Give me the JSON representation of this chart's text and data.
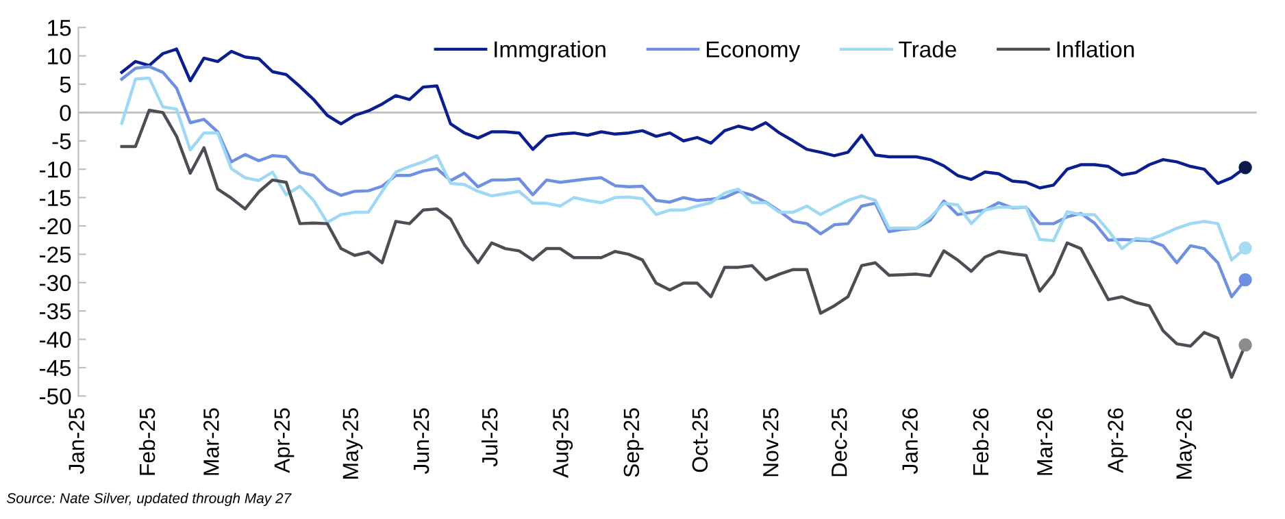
{
  "chart_data": {
    "type": "line",
    "x": [
      "2025-01-20",
      "2025-01-26",
      "2025-02-01",
      "2025-02-07",
      "2025-02-13",
      "2025-02-19",
      "2025-02-25",
      "2025-03-03",
      "2025-03-09",
      "2025-03-15",
      "2025-03-21",
      "2025-03-27",
      "2025-04-02",
      "2025-04-08",
      "2025-04-14",
      "2025-04-20",
      "2025-04-26",
      "2025-05-02",
      "2025-05-08",
      "2025-05-14",
      "2025-05-20",
      "2025-05-26",
      "2025-06-01",
      "2025-06-07",
      "2025-06-13",
      "2025-06-19",
      "2025-06-25",
      "2025-07-01",
      "2025-07-07",
      "2025-07-13",
      "2025-07-19",
      "2025-07-25",
      "2025-07-31",
      "2025-08-06",
      "2025-08-12",
      "2025-08-18",
      "2025-08-24",
      "2025-08-30",
      "2025-09-05",
      "2025-09-11",
      "2025-09-17",
      "2025-09-23",
      "2025-09-29",
      "2025-10-05",
      "2025-10-11",
      "2025-10-17",
      "2025-10-23",
      "2025-10-29",
      "2025-11-04",
      "2025-11-10",
      "2025-11-16",
      "2025-11-22",
      "2025-11-28",
      "2025-12-04",
      "2025-12-10",
      "2025-12-16",
      "2025-12-22",
      "2025-12-28",
      "2026-01-03",
      "2026-01-09",
      "2026-01-15",
      "2026-01-21",
      "2026-01-27",
      "2026-02-02",
      "2026-02-08",
      "2026-02-14",
      "2026-02-20",
      "2026-02-26",
      "2026-03-04",
      "2026-03-10",
      "2026-03-16",
      "2026-03-22",
      "2026-03-28",
      "2026-04-03",
      "2026-04-09",
      "2026-04-15",
      "2026-04-21",
      "2026-04-27",
      "2026-05-03",
      "2026-05-09",
      "2026-05-15",
      "2026-05-21",
      "2026-05-27"
    ],
    "series": [
      {
        "name": "Immgration",
        "color": "#0a1f8f",
        "values": [
          7.1,
          9,
          8.3,
          10.4,
          11.2,
          5.6,
          9.6,
          9,
          10.8,
          9.8,
          9.5,
          7.2,
          6.7,
          4.6,
          2.3,
          -0.5,
          -2,
          -0.5,
          0.3,
          1.5,
          3,
          2.3,
          4.5,
          4.7,
          -2,
          -3.6,
          -4.5,
          -3.4,
          -3.4,
          -3.6,
          -6.5,
          -4.2,
          -3.8,
          -3.6,
          -4,
          -3.4,
          -3.8,
          -3.6,
          -3.2,
          -4.2,
          -3.6,
          -5,
          -4.4,
          -5.4,
          -3.2,
          -2.4,
          -3,
          -1.8,
          -3.6,
          -5,
          -6.5,
          -7,
          -7.6,
          -7,
          -4,
          -7.5,
          -7.8,
          -7.8,
          -7.8,
          -8.3,
          -9.4,
          -11.1,
          -11.8,
          -10.5,
          -10.8,
          -12.1,
          -12.3,
          -13.3,
          -12.8,
          -10,
          -9.2,
          -9.2,
          -9.5,
          -11,
          -10.6,
          -9.2,
          -8.3,
          -8.7,
          -9.5,
          -10,
          -12.5,
          -11.5,
          -9.7
        ]
      },
      {
        "name": "Economy",
        "color": "#6f8fe0",
        "values": [
          5.9,
          7.8,
          8.1,
          7.1,
          4.3,
          -1.8,
          -1.2,
          -3.4,
          -8.7,
          -7.4,
          -8.5,
          -7.6,
          -7.8,
          -10.5,
          -11.1,
          -13.5,
          -14.6,
          -13.9,
          -13.8,
          -13,
          -11.1,
          -11.1,
          -10.3,
          -9.9,
          -12,
          -10.7,
          -13.1,
          -11.9,
          -11.9,
          -11.7,
          -14.5,
          -11.9,
          -12.3,
          -12,
          -11.7,
          -11.5,
          -12.9,
          -13.1,
          -13,
          -15.5,
          -15.8,
          -15,
          -15.5,
          -15.3,
          -15,
          -13.9,
          -14.6,
          -15.8,
          -17.4,
          -19.2,
          -19.6,
          -21.4,
          -19.8,
          -19.6,
          -16.5,
          -16,
          -21,
          -20.6,
          -20.4,
          -19,
          -15.6,
          -18,
          -17.6,
          -17.2,
          -15.9,
          -16.8,
          -16.7,
          -19.6,
          -19.6,
          -18.4,
          -17.8,
          -19.5,
          -22.5,
          -22.4,
          -22.5,
          -22.6,
          -23.5,
          -26.5,
          -23.5,
          -24,
          -26.5,
          -32.5,
          -29.5
        ]
      },
      {
        "name": "Trade",
        "color": "#9ed8f5",
        "values": [
          -1.9,
          5.9,
          6.1,
          1,
          0.6,
          -6.6,
          -3.6,
          -3.6,
          -9.9,
          -11.5,
          -12,
          -10.5,
          -14.5,
          -13,
          -15.5,
          -19.4,
          -18,
          -17.6,
          -17.6,
          -13.9,
          -10.5,
          -9.5,
          -8.7,
          -7.6,
          -12.5,
          -12.7,
          -13.9,
          -14.7,
          -14.3,
          -13.9,
          -16,
          -16,
          -16.5,
          -15,
          -15.5,
          -15.9,
          -15,
          -14.9,
          -15.2,
          -18,
          -17.2,
          -17.2,
          -16.5,
          -15.9,
          -14.2,
          -13.5,
          -15.9,
          -15.9,
          -17.6,
          -17.6,
          -16.5,
          -18,
          -16.7,
          -15.5,
          -14.7,
          -15.5,
          -20.4,
          -20.4,
          -20.4,
          -18.5,
          -16,
          -16.3,
          -19.6,
          -17.2,
          -16.7,
          -16.7,
          -16.7,
          -22.4,
          -22.6,
          -17.5,
          -18,
          -18,
          -20.8,
          -24,
          -22.2,
          -22.4,
          -21.5,
          -20.4,
          -19.6,
          -19.2,
          -19.6,
          -26,
          -23.9
        ]
      },
      {
        "name": "Inflation",
        "color": "#4d4d55",
        "values": [
          -6,
          -6,
          0.4,
          0,
          -4.2,
          -10.7,
          -6.2,
          -13.5,
          -15.1,
          -17,
          -14,
          -11.9,
          -12.3,
          -19.6,
          -19.5,
          -19.6,
          -24,
          -25.2,
          -24.6,
          -26.5,
          -19.2,
          -19.6,
          -17.2,
          -17,
          -18.8,
          -23.3,
          -26.5,
          -23,
          -24,
          -24.4,
          -26,
          -24,
          -24,
          -25.6,
          -25.6,
          -25.6,
          -24.5,
          -25,
          -26,
          -30.1,
          -31.3,
          -30.1,
          -30.1,
          -32.5,
          -27.3,
          -27.3,
          -27,
          -29.5,
          -28.5,
          -27.7,
          -27.7,
          -35.4,
          -34.1,
          -32.5,
          -27,
          -26.5,
          -28.7,
          -28.6,
          -28.5,
          -28.8,
          -24.4,
          -26,
          -28,
          -25.5,
          -24.5,
          -24.9,
          -25.2,
          -31.5,
          -28.5,
          -23,
          -24,
          -28.5,
          -33,
          -32.5,
          -33.5,
          -34.1,
          -38.5,
          -40.8,
          -41.2,
          -38.8,
          -39.8,
          -46.7,
          -41
        ]
      },
      {
        "type": "scatter",
        "color": "#0b1a4f",
        "x": [
          "2026-05-27"
        ],
        "values": [
          -9.7
        ]
      },
      {
        "type": "scatter",
        "color": "#6f8fe0",
        "x": [
          "2026-05-27"
        ],
        "values": [
          -29.5
        ]
      },
      {
        "type": "scatter",
        "color": "#a8dcf5",
        "x": [
          "2026-05-27"
        ],
        "values": [
          -23.9
        ]
      },
      {
        "type": "scatter",
        "color": "#8c8c8c",
        "x": [
          "2026-05-27"
        ],
        "values": [
          -41
        ]
      }
    ],
    "xlim": [
      "2025-01-01",
      "2026-06-01"
    ],
    "xticks": [
      {
        "value": "2025-01-01",
        "label": "Jan-25"
      },
      {
        "value": "2025-02-01",
        "label": "Feb-25"
      },
      {
        "value": "2025-03-01",
        "label": "Mar-25"
      },
      {
        "value": "2025-04-01",
        "label": "Apr-25"
      },
      {
        "value": "2025-05-01",
        "label": "May-25"
      },
      {
        "value": "2025-06-01",
        "label": "Jun-25"
      },
      {
        "value": "2025-07-01",
        "label": "Jul-25"
      },
      {
        "value": "2025-08-01",
        "label": "Aug-25"
      },
      {
        "value": "2025-09-01",
        "label": "Sep-25"
      },
      {
        "value": "2025-10-01",
        "label": "Oct-25"
      },
      {
        "value": "2025-11-01",
        "label": "Nov-25"
      },
      {
        "value": "2025-12-01",
        "label": "Dec-25"
      },
      {
        "value": "2026-01-01",
        "label": "Jan-26"
      },
      {
        "value": "2026-02-01",
        "label": "Feb-26"
      },
      {
        "value": "2026-03-01",
        "label": "Mar-26"
      },
      {
        "value": "2026-04-01",
        "label": "Apr-26"
      },
      {
        "value": "2026-05-01",
        "label": "May-26"
      }
    ],
    "ylim": [
      -50,
      15
    ],
    "yticks": [
      -50,
      -45,
      -40,
      -35,
      -30,
      -25,
      -20,
      -15,
      -10,
      -5,
      0,
      5,
      10,
      15
    ],
    "ref_lines": [
      {
        "axis": "y",
        "value": 0,
        "color": "#bfbfbf"
      }
    ],
    "line_style": "solid",
    "grid": false,
    "legend": "top",
    "annotations": [
      "Source: Nate Silver, updated through May 27"
    ]
  }
}
